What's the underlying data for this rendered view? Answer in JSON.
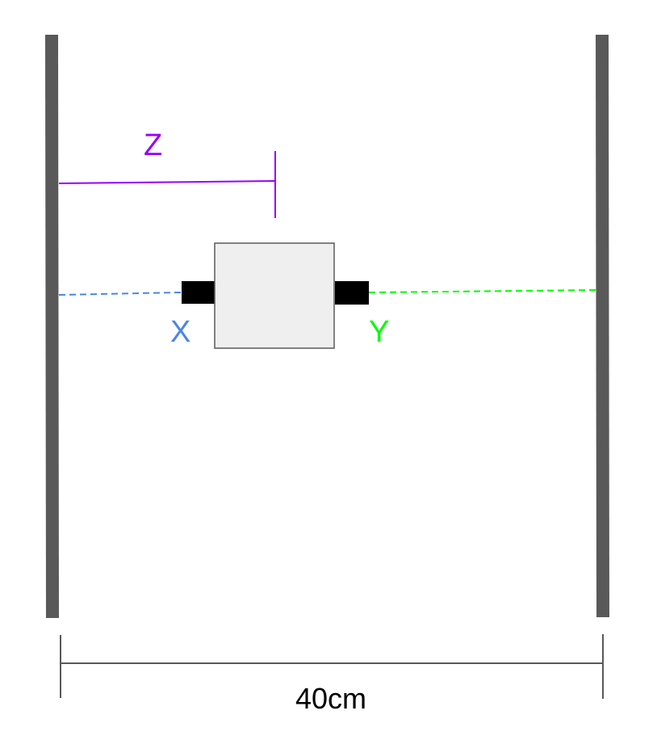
{
  "labels": {
    "z": "Z",
    "x": "X",
    "y": "Y",
    "width": "40cm"
  },
  "colors": {
    "wall": "#595959",
    "z": "#9900ff",
    "x": "#4a86e8",
    "y": "#00ff00",
    "dimension": "#595959",
    "box_fill": "#efefef",
    "box_stroke": "#595959",
    "sensor": "#000000",
    "text": "#000000"
  }
}
